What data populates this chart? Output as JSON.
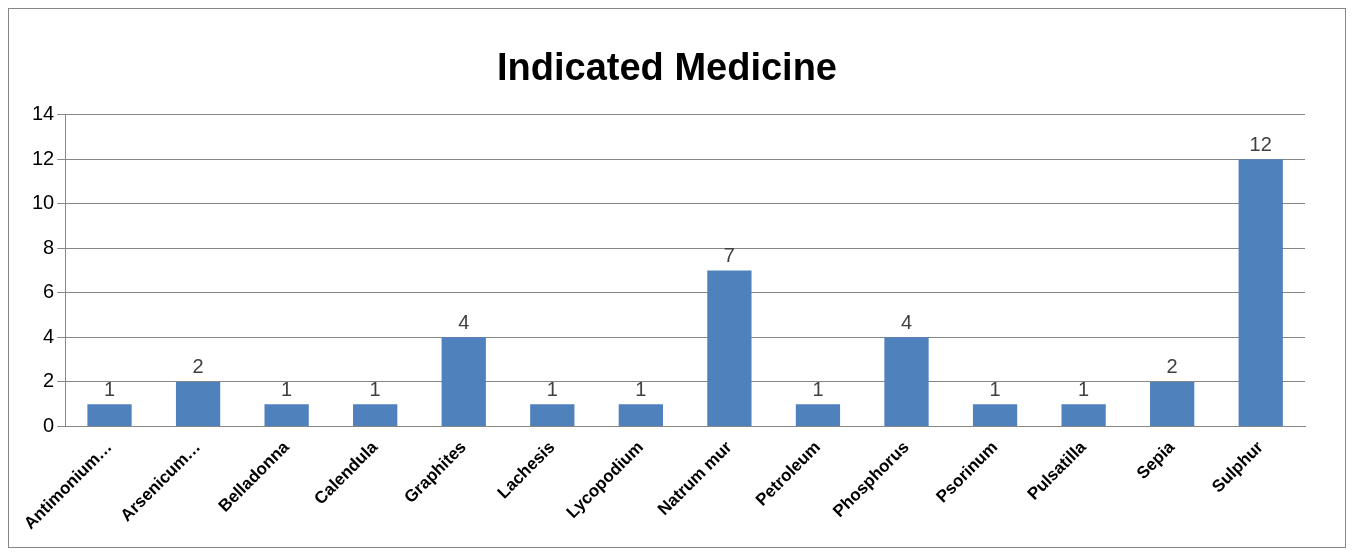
{
  "chart_data": {
    "type": "bar",
    "title": "Indicated Medicine",
    "categories": [
      "Antimonium…",
      "Arsenicum…",
      "Belladonna",
      "Calendula",
      "Graphites",
      "Lachesis",
      "Lycopodium",
      "Natrum mur",
      "Petroleum",
      "Phosphorus",
      "Psorinum",
      "Pulsatilla",
      "Sepia",
      "Sulphur"
    ],
    "values": [
      1,
      2,
      1,
      1,
      4,
      1,
      1,
      7,
      1,
      4,
      1,
      1,
      2,
      12
    ],
    "color": "#4f81bd",
    "ylim": [
      0,
      14
    ],
    "yticks": [
      0,
      2,
      4,
      6,
      8,
      10,
      12,
      14
    ],
    "grid": "y",
    "data_labels": true,
    "legend": false
  }
}
